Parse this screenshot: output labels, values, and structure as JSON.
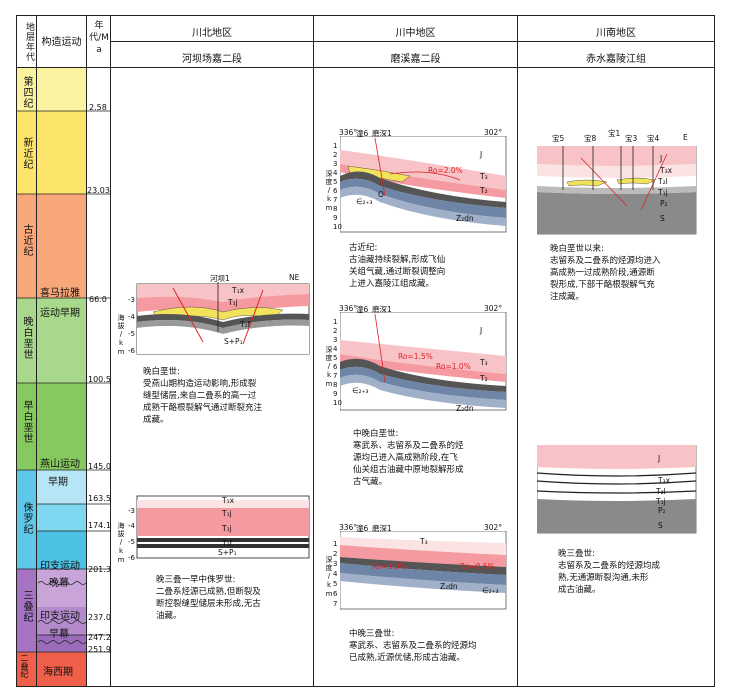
{
  "header": {
    "stratum_age": "地层年代",
    "tectonic": "构造运动",
    "age_ma": "年代/Ma",
    "region_north": "川北地区",
    "region_central": "川中地区",
    "region_south": "川南地区",
    "sub_north": "河坝场嘉二段",
    "sub_central": "磨溪嘉二段",
    "sub_south": "赤水嘉陵江组"
  },
  "periods": [
    {
      "name": "第四纪",
      "color": "#fbf3a0"
    },
    {
      "name": "新近纪",
      "color": "#fde46a"
    },
    {
      "name": "古近纪",
      "color": "#f8a77b"
    },
    {
      "name": "晚白垩世",
      "color": "#a8d88c"
    },
    {
      "name": "早白垩世",
      "color": "#86c95e"
    },
    {
      "name": "侏罗纪",
      "color": "#5fc8e8"
    },
    {
      "name": "三叠纪",
      "color": "#a674c2"
    },
    {
      "name": "二叠纪",
      "color": "#ef5f4a"
    }
  ],
  "tectonics": {
    "himalaya": "喜马拉雅",
    "himalaya_early": "运动早期",
    "yanshan": "燕山运动",
    "jurassic_early": "早期",
    "indosinian": "印支运动",
    "late_curtain": "晚幕",
    "indosinian2": "印支运动",
    "early_curtain": "早幕",
    "hercynian": "海西期"
  },
  "ages": [
    "2.58",
    "23.03",
    "66.0",
    "100.5",
    "145.0",
    "163.5",
    "174.1",
    "201.3",
    "237.0",
    "247.2",
    "251.9"
  ],
  "north": {
    "well": "河坝1",
    "dir": "NE",
    "axis_label": "海拔/km",
    "axis_ticks": [
      "-3",
      "-4",
      "-5",
      "-6"
    ],
    "layer_tx": "T₁x",
    "layer_tj": "T₁j",
    "layer_tf": "T₁f",
    "layer_s": "S+P₁",
    "note1": "晚白垩世:\n受燕山期构造运动影响,形成裂\n缝型储层,来自二叠系的高一过\n成熟干酪根裂解气通过断裂充注\n成藏。",
    "note2": "晚三叠一早中侏罗世:\n二叠系烃源已成熟,但断裂及\n断控裂缝型储层未形成,无古\n油藏。",
    "axis2_ticks": [
      "-3",
      "-4",
      "-5",
      "-6"
    ]
  },
  "central": {
    "well_a": "潼6",
    "well_b": "磨深1",
    "left_mark": "336°",
    "right_mark": "302°",
    "axis_label": "深度/km",
    "axis_ticks": [
      "1",
      "2",
      "3",
      "4",
      "5",
      "6",
      "7",
      "8",
      "9",
      "10"
    ],
    "axis_ticks_c": [
      "1",
      "2",
      "3",
      "4",
      "5",
      "6",
      "7"
    ],
    "j_label": "J",
    "t3": "T₃",
    "t2": "T₂",
    "zdn": "Z₂dn",
    "e": "∈₂₊₃",
    "o": "O",
    "ro1": "Ro=2.0%",
    "ro2": "Ro=1.5%",
    "ro3": "Ro=1.3%",
    "ro4": "Ro=1.0%",
    "ro5": "Ro=0.5%",
    "note1": "古近纪:\n古油藏持续裂解,形成飞仙\n关组气藏,通过断裂调整向\n上进入嘉陵江组成藏。",
    "note2": "中晚白垩世:\n寒武系、志留系及二叠系的烃\n源均已进入高成熟阶段,在飞\n仙关组古油藏中原地裂解形成\n古气藏。",
    "note3": "中晚三叠世:\n寒武系、志留系及二叠系的烃源均\n已成熟,近源优储,形成古油藏。"
  },
  "south": {
    "wells": [
      "宝5",
      "宝8",
      "宝1",
      "宝3",
      "宝4"
    ],
    "dir": "E",
    "j": "J",
    "t3x": "T₃x",
    "t2l": "T₂l",
    "t1j": "T₁j",
    "p2": "P₂",
    "s": "S",
    "note1": "晚白垩世以来:\n志留系及二叠系的烃源均进入\n高成熟一过成熟阶段,通源断\n裂形成,下部干酪根裂解气充\n注成藏。",
    "note2": "晚三叠世:\n志留系及二叠系的烃源均成\n熟,无通源断裂沟通,未形\n成古油藏。"
  }
}
